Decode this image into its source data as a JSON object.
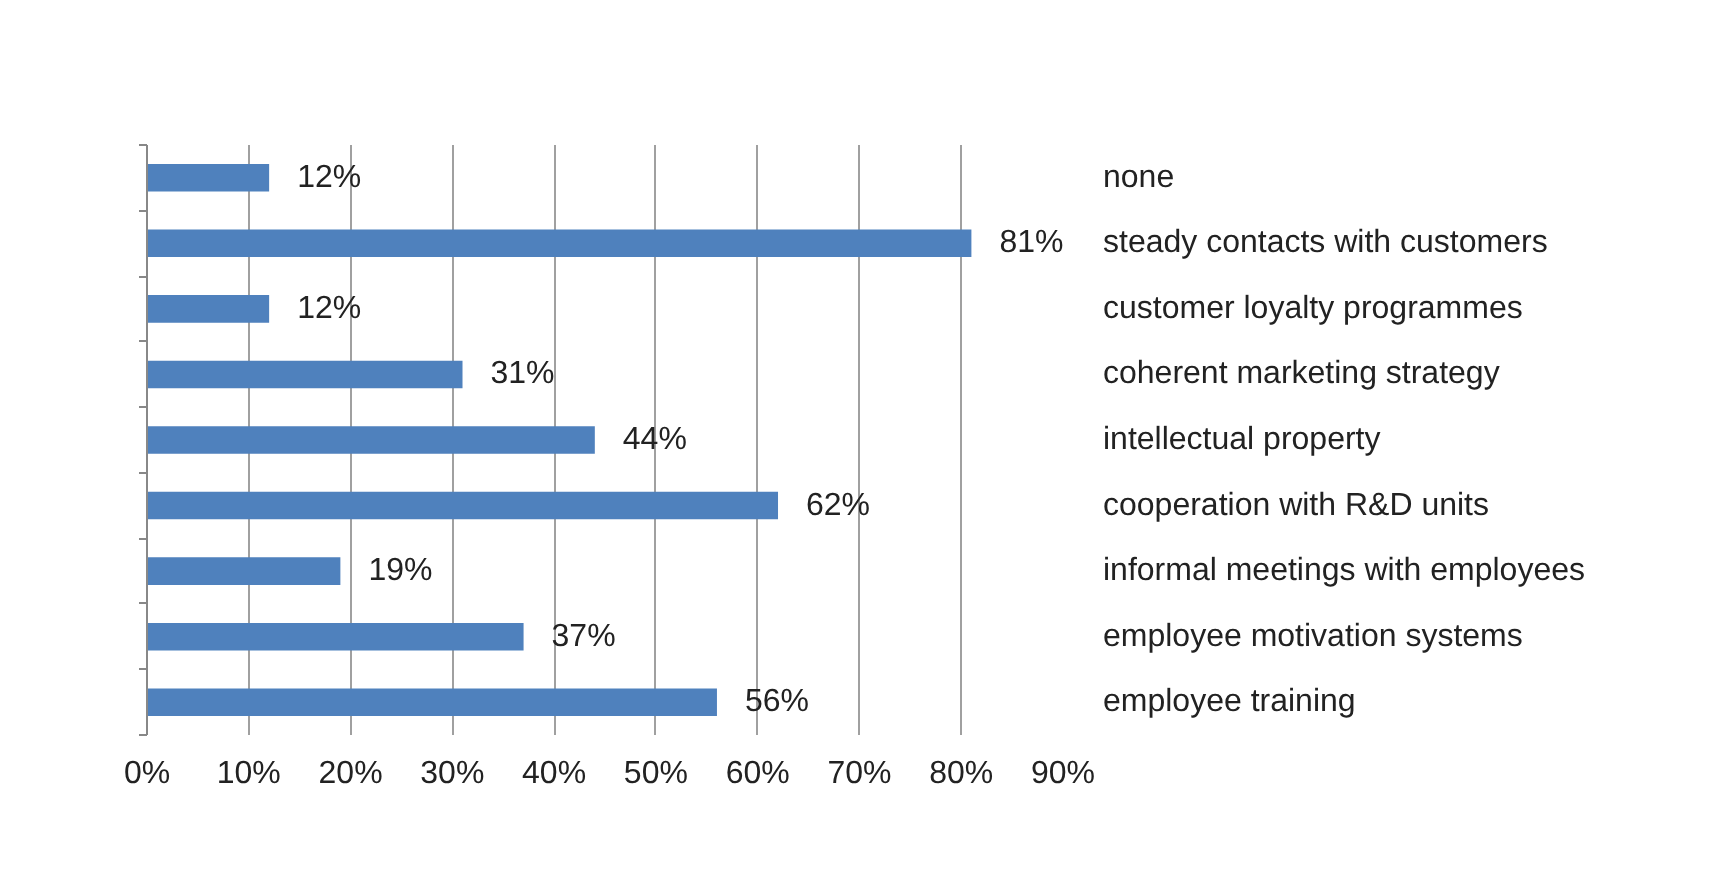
{
  "chart_data": {
    "type": "bar",
    "orientation": "horizontal",
    "categories": [
      "none",
      "steady contacts with customers",
      "customer loyalty programmes",
      "coherent marketing strategy",
      "intellectual property",
      "cooperation with R&D units",
      "informal meetings with employees",
      "employee motivation systems",
      "employee training"
    ],
    "values": [
      12,
      81,
      12,
      31,
      44,
      62,
      19,
      37,
      56
    ],
    "value_labels": [
      "12%",
      "81%",
      "12%",
      "31%",
      "44%",
      "62%",
      "19%",
      "37%",
      "56%"
    ],
    "color": "#4f81bd",
    "xlim": [
      0,
      90
    ],
    "xticks": [
      {
        "value": 0,
        "label": "0%"
      },
      {
        "value": 10,
        "label": "10%"
      },
      {
        "value": 20,
        "label": "20%"
      },
      {
        "value": 30,
        "label": "30%"
      },
      {
        "value": 40,
        "label": "40%"
      },
      {
        "value": 50,
        "label": "50%"
      },
      {
        "value": 60,
        "label": "60%"
      },
      {
        "value": 70,
        "label": "70%"
      },
      {
        "value": 80,
        "label": "80%"
      },
      {
        "value": 90,
        "label": "90%"
      }
    ],
    "grid": "x"
  }
}
